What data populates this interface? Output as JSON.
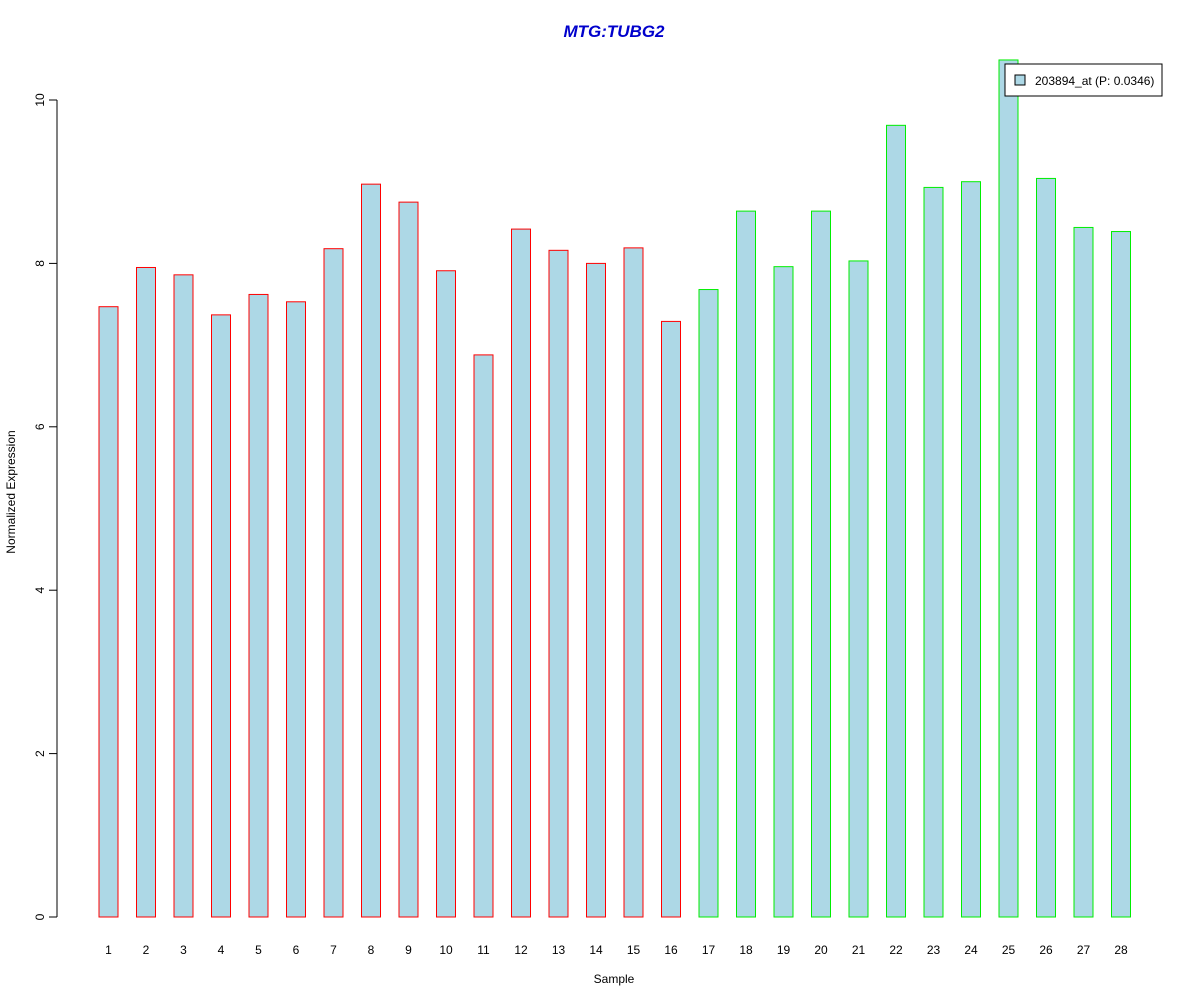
{
  "chart_data": {
    "type": "bar",
    "title": "MTG:TUBG2",
    "xlabel": "Sample",
    "ylabel": "Normalized Expression",
    "categories": [
      "1",
      "2",
      "3",
      "4",
      "5",
      "6",
      "7",
      "8",
      "9",
      "10",
      "11",
      "12",
      "13",
      "14",
      "15",
      "16",
      "17",
      "18",
      "19",
      "20",
      "21",
      "22",
      "23",
      "24",
      "25",
      "26",
      "27",
      "28"
    ],
    "series": [
      {
        "name": "203894_at (P: 0.0346)",
        "values": [
          7.47,
          7.95,
          7.86,
          7.37,
          7.62,
          7.53,
          8.18,
          8.97,
          8.75,
          7.91,
          6.88,
          8.42,
          8.16,
          8.0,
          8.19,
          7.29,
          7.68,
          8.64,
          7.96,
          8.64,
          8.03,
          9.69,
          8.93,
          9.0,
          10.49,
          9.04,
          8.44,
          8.39
        ]
      }
    ],
    "group_of_sample": [
      1,
      1,
      1,
      1,
      1,
      1,
      1,
      1,
      1,
      1,
      1,
      1,
      1,
      1,
      1,
      1,
      2,
      2,
      2,
      2,
      2,
      2,
      2,
      2,
      2,
      2,
      2,
      2
    ],
    "ylim": [
      0,
      10.5
    ],
    "yticks": [
      0,
      2,
      4,
      6,
      8,
      10
    ],
    "grid": false,
    "legend_position": "top-right",
    "colors": {
      "bar_fill": "#add8e6",
      "group1_border": "#ff0000",
      "group2_border": "#00ee00",
      "title": "#0000cc",
      "axis": "#000000"
    }
  }
}
